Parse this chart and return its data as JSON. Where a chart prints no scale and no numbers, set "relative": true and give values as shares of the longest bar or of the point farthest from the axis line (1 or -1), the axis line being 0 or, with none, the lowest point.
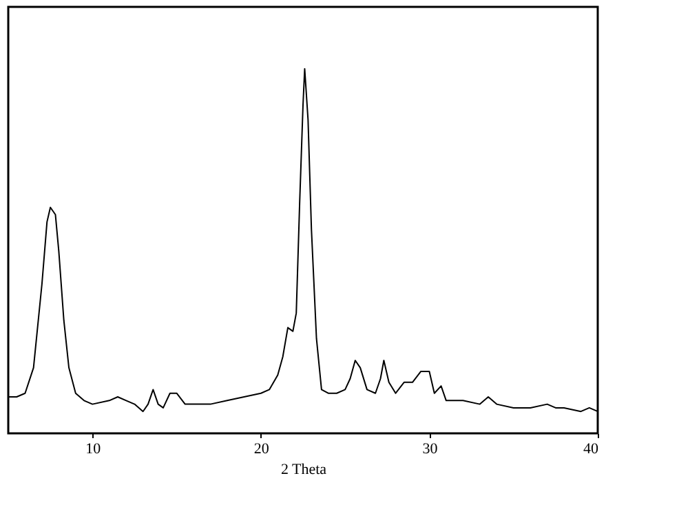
{
  "chart_data": {
    "type": "line",
    "xlabel": "2 Theta",
    "relative": true,
    "xlim": [
      5,
      40
    ],
    "xticks": [
      10,
      20,
      30,
      40
    ],
    "grid": false,
    "legend": false,
    "marker": "none",
    "line_style": "solid",
    "series": [
      {
        "color": "#000000",
        "x": [
          5.0,
          5.5,
          6.0,
          6.5,
          7.0,
          7.3,
          7.5,
          7.8,
          8.0,
          8.3,
          8.6,
          9.0,
          9.5,
          10,
          11,
          11.5,
          12,
          12.5,
          13,
          13.3,
          13.6,
          13.9,
          14.2,
          14.6,
          15,
          15.5,
          16,
          17,
          18,
          19,
          20,
          20.5,
          21,
          21.3,
          21.6,
          21.9,
          22.1,
          22.3,
          22.5,
          22.6,
          22.8,
          23.0,
          23.3,
          23.6,
          24,
          24.5,
          25,
          25.3,
          25.6,
          25.9,
          26.3,
          26.8,
          27.1,
          27.3,
          27.6,
          28,
          28.5,
          29,
          29.5,
          30,
          30.3,
          30.7,
          31,
          32,
          33,
          33.5,
          34,
          35,
          36,
          37,
          37.5,
          38,
          39,
          39.5,
          40
        ],
        "values": [
          0.1,
          0.1,
          0.11,
          0.18,
          0.41,
          0.58,
          0.62,
          0.6,
          0.5,
          0.31,
          0.18,
          0.11,
          0.09,
          0.08,
          0.09,
          0.1,
          0.09,
          0.08,
          0.06,
          0.08,
          0.12,
          0.08,
          0.07,
          0.11,
          0.11,
          0.08,
          0.08,
          0.08,
          0.09,
          0.1,
          0.11,
          0.12,
          0.16,
          0.21,
          0.29,
          0.28,
          0.33,
          0.63,
          0.9,
          1.0,
          0.86,
          0.56,
          0.26,
          0.12,
          0.11,
          0.11,
          0.12,
          0.15,
          0.2,
          0.18,
          0.12,
          0.11,
          0.15,
          0.2,
          0.14,
          0.11,
          0.14,
          0.14,
          0.17,
          0.17,
          0.11,
          0.13,
          0.09,
          0.09,
          0.08,
          0.1,
          0.08,
          0.07,
          0.07,
          0.08,
          0.07,
          0.07,
          0.06,
          0.07,
          0.06
        ]
      }
    ]
  }
}
